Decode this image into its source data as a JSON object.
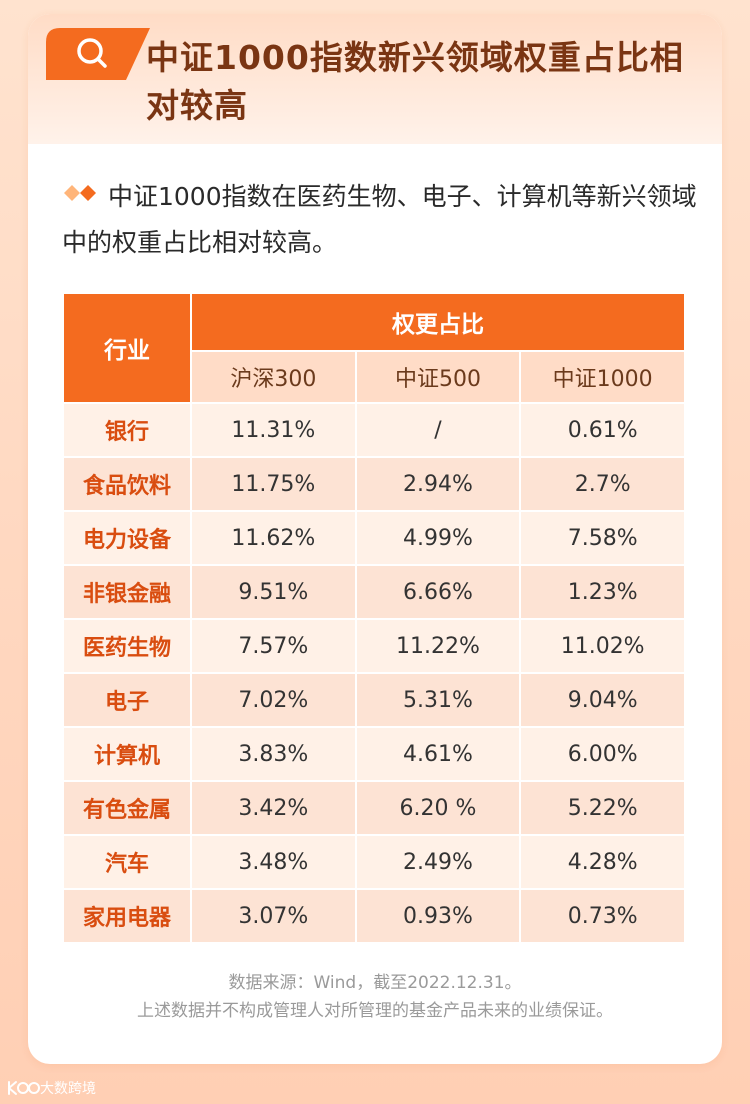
{
  "header": {
    "icon": "search-icon",
    "title": "中证1000指数新兴领域权重占比相对较高"
  },
  "intro": {
    "icon": "double-diamond-icon",
    "text": "中证1000指数在医药生物、电子、计算机等新兴领域中的权重占比相对较高。"
  },
  "table": {
    "col_industry": "行业",
    "col_group": "权更占比",
    "sub_cols": [
      "沪深300",
      "中证500",
      "中证1000"
    ],
    "rows": [
      {
        "industry": "银行",
        "hs300": "11.31%",
        "zz500": "/",
        "zz1000": "0.61%"
      },
      {
        "industry": "食品饮料",
        "hs300": "11.75%",
        "zz500": "2.94%",
        "zz1000": "2.7%"
      },
      {
        "industry": "电力设备",
        "hs300": "11.62%",
        "zz500": "4.99%",
        "zz1000": "7.58%"
      },
      {
        "industry": "非银金融",
        "hs300": "9.51%",
        "zz500": "6.66%",
        "zz1000": "1.23%"
      },
      {
        "industry": "医药生物",
        "hs300": "7.57%",
        "zz500": "11.22%",
        "zz1000": "11.02%"
      },
      {
        "industry": "电子",
        "hs300": "7.02%",
        "zz500": "5.31%",
        "zz1000": "9.04%"
      },
      {
        "industry": "计算机",
        "hs300": "3.83%",
        "zz500": "4.61%",
        "zz1000": "6.00%"
      },
      {
        "industry": "有色金属",
        "hs300": "3.42%",
        "zz500": "6.20 %",
        "zz1000": "5.22%"
      },
      {
        "industry": "汽车",
        "hs300": "3.48%",
        "zz500": "2.49%",
        "zz1000": "4.28%"
      },
      {
        "industry": "家用电器",
        "hs300": "3.07%",
        "zz500": "0.93%",
        "zz1000": "0.73%"
      }
    ]
  },
  "footnote": {
    "source": "数据来源：Wind，截至2022.12.31。",
    "disclaimer": "上述数据并不构成管理人对所管理的基金产品未来的业绩保证。"
  },
  "watermark": {
    "text": "大数跨境"
  },
  "colors": {
    "accent": "#f46b1f",
    "title": "#7a3513",
    "industry_text": "#d94d10"
  }
}
